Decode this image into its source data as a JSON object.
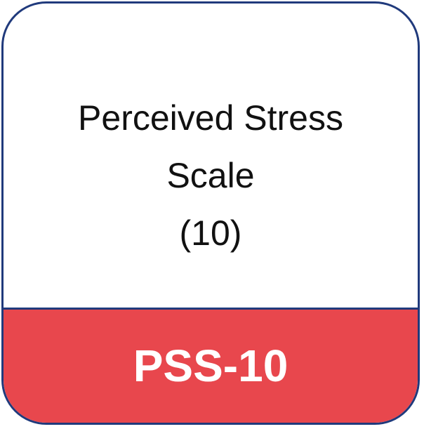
{
  "card": {
    "title_lines": [
      "Perceived Stress",
      "Scale",
      "(10)"
    ],
    "badge": "PSS-10"
  },
  "colors": {
    "border": "#203a7c",
    "banner": "#e8474d",
    "banner_text": "#ffffff",
    "title_text": "#111111"
  }
}
